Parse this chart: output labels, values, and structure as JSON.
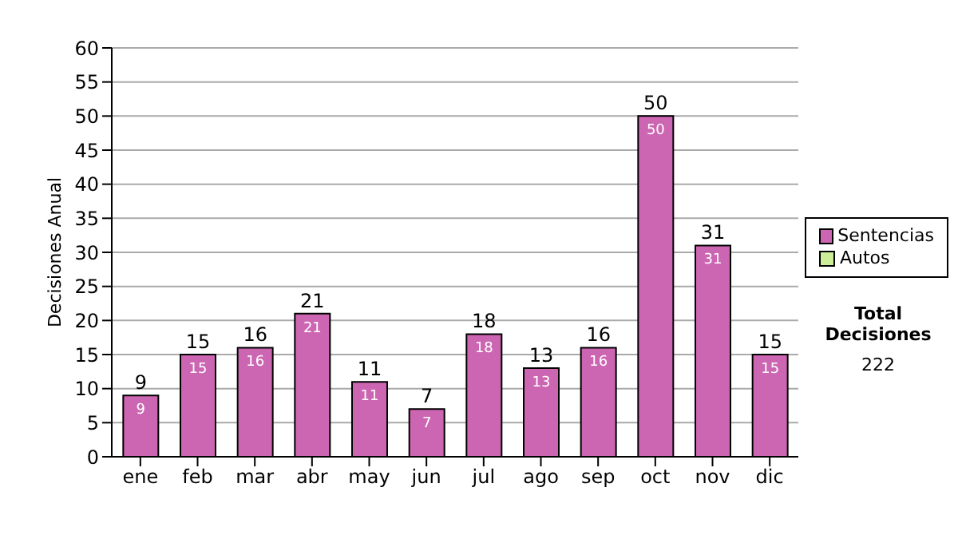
{
  "chart_data": {
    "type": "bar",
    "stacked": true,
    "ylabel": "Decisiones Anual",
    "categories": [
      "ene",
      "feb",
      "mar",
      "abr",
      "may",
      "jun",
      "jul",
      "ago",
      "sep",
      "oct",
      "nov",
      "dic"
    ],
    "series": [
      {
        "name": "Sentencias",
        "color": "#cc66b2",
        "values": [
          9,
          15,
          16,
          21,
          11,
          7,
          18,
          13,
          16,
          50,
          31,
          15
        ],
        "value_labels": [
          "9",
          "15",
          "16",
          "21",
          "11",
          "7",
          "18",
          "13",
          "16",
          "50",
          "31",
          "15"
        ]
      },
      {
        "name": "Autos",
        "color": "#ccee99",
        "values": [
          0,
          0,
          0,
          0,
          0,
          0,
          0,
          0,
          0,
          0,
          0,
          0
        ]
      }
    ],
    "totals": [
      "9",
      "15",
      "16",
      "21",
      "11",
      "7",
      "18",
      "13",
      "16",
      "50",
      "31",
      "15"
    ],
    "ylim": [
      0,
      60
    ],
    "yticks": [
      0,
      5,
      10,
      15,
      20,
      25,
      30,
      35,
      40,
      45,
      50,
      55,
      60
    ],
    "grid": "y",
    "legend": "right",
    "annotations": [
      "Total Decisiones",
      "222"
    ]
  }
}
